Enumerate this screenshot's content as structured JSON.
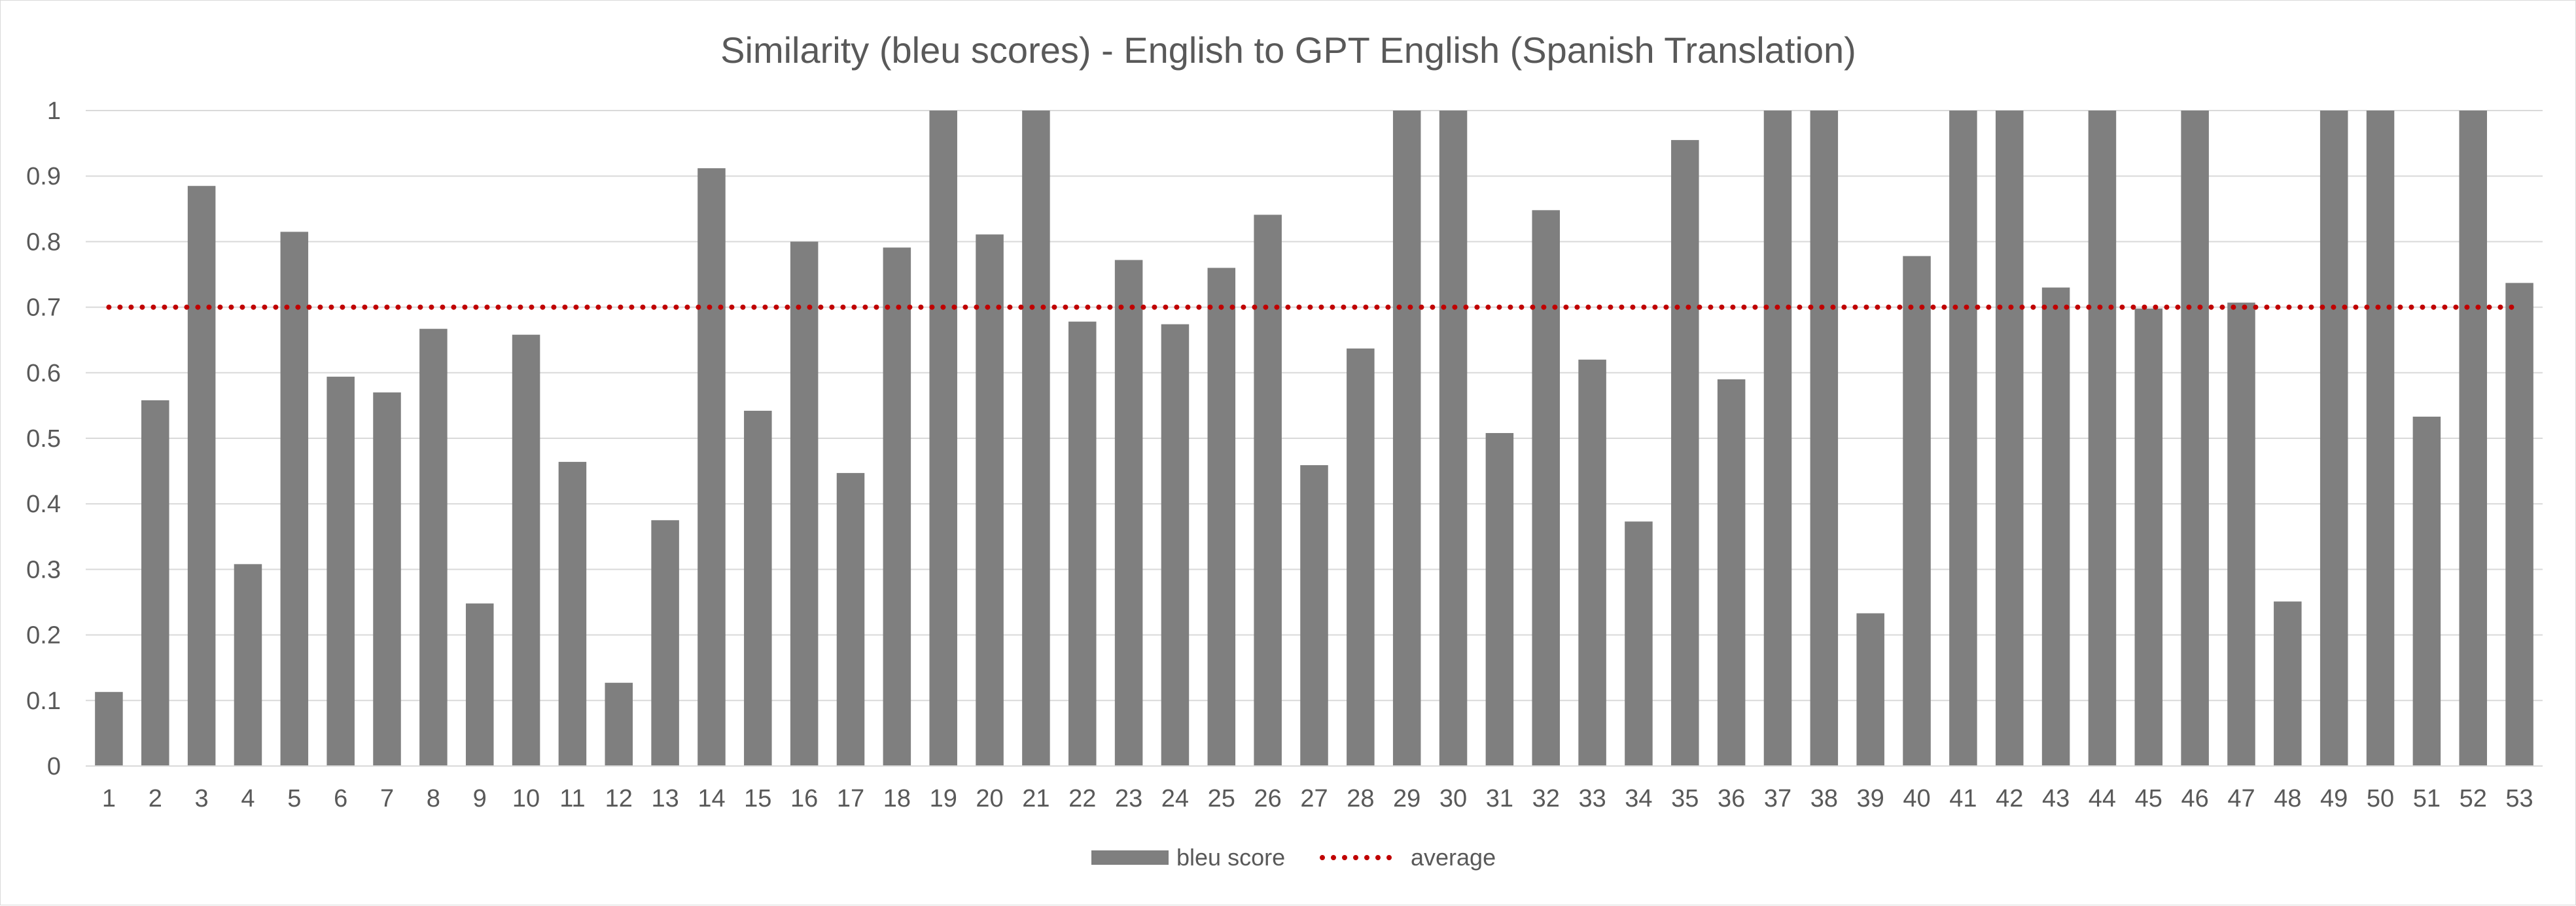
{
  "chart_data": {
    "type": "bar",
    "title": "Similarity (bleu scores) - English to GPT English (Spanish Translation)",
    "xlabel": "",
    "ylabel": "",
    "categories": [
      "1",
      "2",
      "3",
      "4",
      "5",
      "6",
      "7",
      "8",
      "9",
      "10",
      "11",
      "12",
      "13",
      "14",
      "15",
      "16",
      "17",
      "18",
      "19",
      "20",
      "21",
      "22",
      "23",
      "24",
      "25",
      "26",
      "27",
      "28",
      "29",
      "30",
      "31",
      "32",
      "33",
      "34",
      "35",
      "36",
      "37",
      "38",
      "39",
      "40",
      "41",
      "42",
      "43",
      "44",
      "45",
      "46",
      "47",
      "48",
      "49",
      "50",
      "51",
      "52",
      "53"
    ],
    "series": [
      {
        "name": "bleu score",
        "type": "bar",
        "color": "#7f7f7f",
        "values": [
          0.113,
          0.558,
          0.885,
          0.308,
          0.815,
          0.594,
          0.57,
          0.667,
          0.248,
          0.658,
          0.464,
          0.127,
          0.375,
          0.912,
          0.542,
          0.8,
          0.447,
          0.791,
          1.0,
          0.811,
          1.0,
          0.678,
          0.772,
          0.674,
          0.76,
          0.841,
          0.459,
          0.637,
          1.0,
          1.0,
          0.508,
          0.848,
          0.62,
          0.373,
          0.955,
          0.59,
          1.0,
          1.0,
          0.233,
          0.778,
          1.0,
          1.0,
          0.73,
          1.0,
          0.698,
          1.0,
          0.707,
          0.251,
          1.0,
          1.0,
          0.533,
          1.0,
          0.737
        ]
      },
      {
        "name": "average",
        "type": "line",
        "style": "dotted",
        "color": "#c00000",
        "value": 0.7
      }
    ],
    "yticks": [
      "0",
      "0.1",
      "0.2",
      "0.3",
      "0.4",
      "0.5",
      "0.6",
      "0.7",
      "0.8",
      "0.9",
      "1"
    ],
    "ylim": [
      0,
      1
    ],
    "grid": true,
    "legend_position": "bottom"
  }
}
